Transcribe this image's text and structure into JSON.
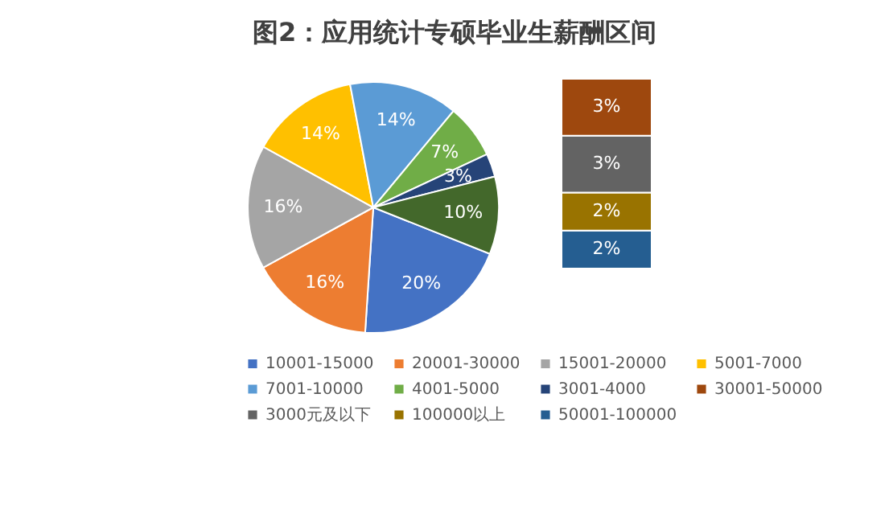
{
  "chart_data": [
    {
      "type": "pie",
      "title": "图2：应用统计专硕毕业生薪酬区间",
      "categories": [
        "10001-15000",
        "20001-30000",
        "15001-20000",
        "5001-7000",
        "7001-10000",
        "4001-5000",
        "3001-4000",
        null
      ],
      "values": [
        20,
        16,
        16,
        14,
        14,
        7,
        3,
        10
      ],
      "value_labels": [
        "20%",
        "16%",
        "16%",
        "14%",
        "14%",
        "7%",
        "3%",
        "10%"
      ],
      "colors": [
        "#4472c4",
        "#ed7d31",
        "#a5a5a5",
        "#ffc000",
        "#5b9bd5",
        "#70ad47",
        "#264478",
        "#43682b"
      ],
      "legend": "bottom"
    },
    {
      "type": "bar",
      "stacked": true,
      "categories": [
        null
      ],
      "series": [
        {
          "name": "50001-100000",
          "color": "#255e91",
          "values": [
            2
          ],
          "value_labels": [
            "2%"
          ]
        },
        {
          "name": "100000以上",
          "color": "#997300",
          "values": [
            2
          ],
          "value_labels": [
            "2%"
          ]
        },
        {
          "name": "3000元及以下",
          "color": "#636363",
          "values": [
            3
          ],
          "value_labels": [
            "3%"
          ]
        },
        {
          "name": "30001-50000",
          "color": "#9e480e",
          "values": [
            3
          ],
          "value_labels": [
            "3%"
          ]
        }
      ],
      "legend": "bottom"
    }
  ]
}
